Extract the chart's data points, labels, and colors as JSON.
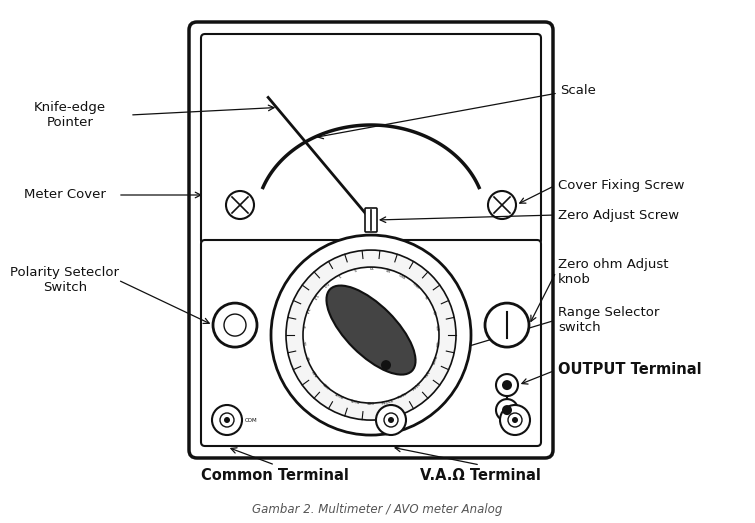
{
  "bg_color": "#ffffff",
  "line_color": "#111111",
  "caption": "Gambar 2. Multimeter / AVO meter Analog",
  "caption_fontsize": 8.5,
  "labels": {
    "knife_edge_pointer": "Knife-edge\nPointer",
    "scale": "Scale",
    "meter_cover": "Meter Cover",
    "cover_fixing_screw": "Cover Fixing Screw",
    "zero_adjust_screw": "Zero Adjust Screw",
    "polarity_selector": "Polarity Seteclor\nSwitch",
    "zero_ohm_adjust": "Zero ohm Adjust\nknob",
    "range_selector": "Range Selector\nswitch",
    "output_terminal": "OUTPUT Terminal",
    "common_terminal": "Common Terminal",
    "va_omega_terminal": "V.A.Ω Terminal"
  }
}
